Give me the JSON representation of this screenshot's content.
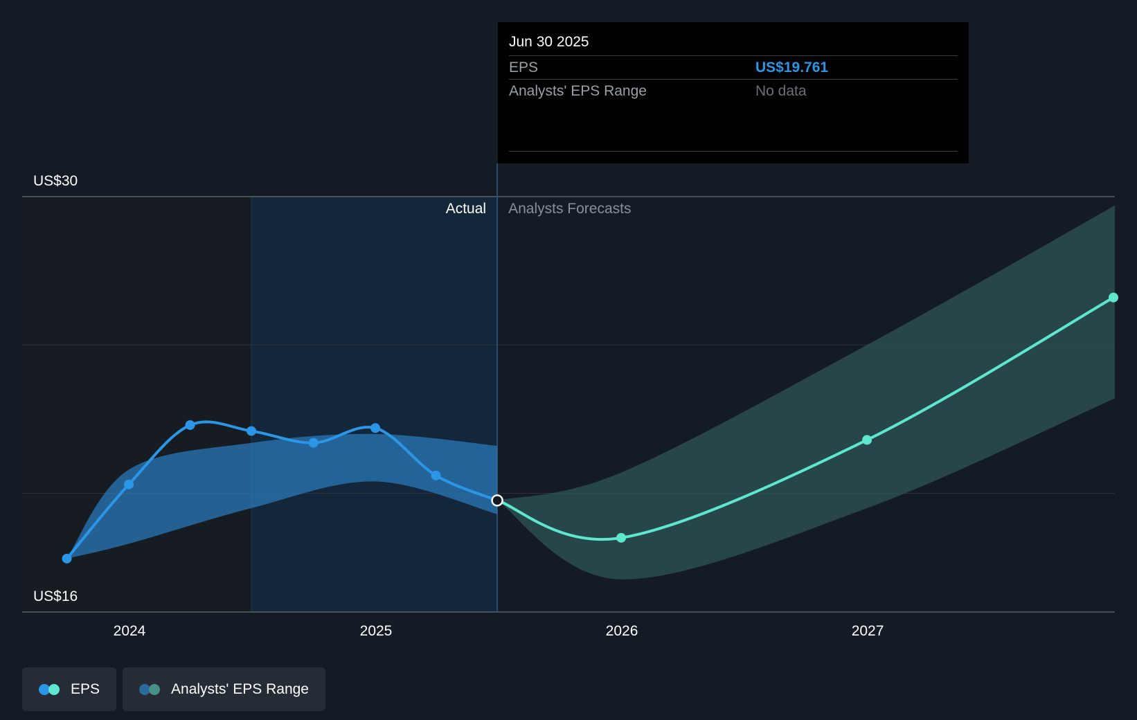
{
  "chart_data": {
    "type": "line",
    "y_axis": {
      "ylim": [
        16,
        30
      ],
      "tick_labels": [
        "US$30",
        "US$16"
      ],
      "gridlines": [
        30,
        25,
        20
      ]
    },
    "x_axis": {
      "tick_labels": [
        "2024",
        "2025",
        "2026",
        "2027"
      ]
    },
    "regions": {
      "actual_label": "Actual",
      "forecast_label": "Analysts Forecasts"
    },
    "series": [
      {
        "name": "EPS",
        "kind": "actual",
        "color": "#2b96e6",
        "points": [
          {
            "x": "2023-09-30",
            "y": 17.8
          },
          {
            "x": "2023-12-31",
            "y": 20.3
          },
          {
            "x": "2024-03-31",
            "y": 22.3
          },
          {
            "x": "2024-06-30",
            "y": 22.1
          },
          {
            "x": "2024-09-30",
            "y": 21.7
          },
          {
            "x": "2024-12-31",
            "y": 22.2
          },
          {
            "x": "2025-03-31",
            "y": 20.6
          },
          {
            "x": "2025-06-30",
            "y": 19.761
          }
        ]
      },
      {
        "name": "EPS",
        "kind": "forecast",
        "color": "#5ee6cf",
        "points": [
          {
            "x": "2025-06-30",
            "y": 19.761
          },
          {
            "x": "2025-12-31",
            "y": 18.5
          },
          {
            "x": "2026-12-31",
            "y": 21.8
          },
          {
            "x": "2027-12-31",
            "y": 26.6
          }
        ]
      }
    ],
    "range_bands": [
      {
        "name": "Analysts' EPS Range",
        "kind": "actual",
        "color": "#2b7ec1",
        "points": [
          {
            "x": "2023-09-30",
            "low": 17.8,
            "high": 17.8
          },
          {
            "x": "2023-12-31",
            "low": 18.3,
            "high": 20.8
          },
          {
            "x": "2024-06-30",
            "low": 19.5,
            "high": 21.7
          },
          {
            "x": "2024-12-31",
            "low": 20.4,
            "high": 22.0
          },
          {
            "x": "2025-06-30",
            "low": 19.3,
            "high": 21.6
          }
        ]
      },
      {
        "name": "Analysts' EPS Range",
        "kind": "forecast",
        "color": "#2e5556",
        "points": [
          {
            "x": "2025-06-30",
            "low": 19.761,
            "high": 19.761
          },
          {
            "x": "2025-12-31",
            "low": 17.1,
            "high": 20.7
          },
          {
            "x": "2026-12-31",
            "low": 19.5,
            "high": 25.0
          },
          {
            "x": "2027-12-31",
            "low": 23.2,
            "high": 29.7
          }
        ]
      }
    ],
    "tooltip": {
      "date": "Jun 30 2025",
      "rows": [
        {
          "label": "EPS",
          "value": "US$19.761"
        },
        {
          "label": "Analysts' EPS Range",
          "value": "No data"
        }
      ]
    },
    "legend": [
      {
        "label": "EPS",
        "colors": [
          "#2b96e6",
          "#5ee6cf"
        ]
      },
      {
        "label": "Analysts' EPS Range",
        "colors": [
          "#2b6a9a",
          "#4a8f86"
        ]
      }
    ],
    "grid": true,
    "legend_placement": "bottom-left"
  }
}
